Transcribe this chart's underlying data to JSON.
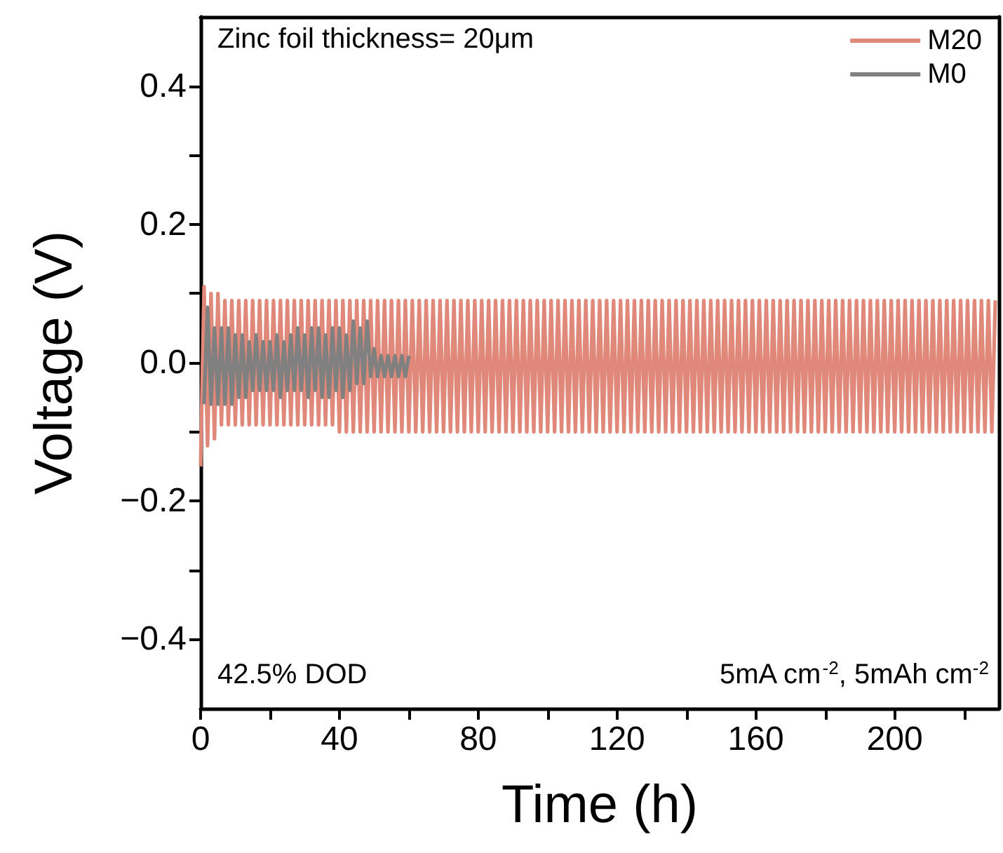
{
  "chart_data": {
    "type": "line",
    "xlabel": "Time (h)",
    "ylabel": "Voltage (V)",
    "annotations": [
      "Zinc foil thickness= 20μm",
      "42.5% DOD",
      "5mA cm$^{-2}$, 5mAh cm$^{-2}$"
    ],
    "xlim": [
      0,
      230
    ],
    "ylim": [
      -0.5,
      0.5
    ],
    "xticks": [
      0,
      {
        "value": 20,
        "label": null
      },
      40,
      {
        "value": 60,
        "label": null
      },
      80,
      {
        "value": 100,
        "label": null
      },
      120,
      {
        "value": 140,
        "label": null
      },
      160,
      {
        "value": 180,
        "label": null
      },
      200,
      {
        "value": 220,
        "label": null
      }
    ],
    "yticks": [
      {
        "value": -0.4,
        "label": "−0.4"
      },
      {
        "value": -0.3,
        "label": null
      },
      {
        "value": -0.2,
        "label": "−0.2"
      },
      {
        "value": -0.1,
        "label": null
      },
      {
        "value": 0,
        "label": "0.0"
      },
      {
        "value": 0.1,
        "label": null
      },
      {
        "value": 0.2,
        "label": "0.2"
      },
      {
        "value": 0.3,
        "label": null
      },
      {
        "value": 0.4,
        "label": "0.4"
      }
    ],
    "grid": false,
    "legend": "top right",
    "marker": "none",
    "line_style": "solid",
    "series": [
      {
        "name": "M20",
        "color": "#e0897a",
        "x": [
          0,
          1,
          2,
          3,
          4,
          5,
          6,
          7,
          8,
          9,
          10,
          11,
          12,
          13,
          14,
          15,
          16,
          17,
          18,
          19,
          20,
          21,
          22,
          23,
          24,
          25,
          26,
          27,
          28,
          29,
          30,
          31,
          32,
          33,
          34,
          35,
          36,
          37,
          38,
          39,
          40,
          41,
          42,
          43,
          44,
          45,
          46,
          47,
          48,
          49,
          50,
          51,
          52,
          53,
          54,
          55,
          56,
          57,
          58,
          59,
          60,
          61,
          62,
          63,
          64,
          65,
          66,
          67,
          68,
          69,
          70,
          71,
          72,
          73,
          74,
          75,
          76,
          77,
          78,
          79,
          80,
          81,
          82,
          83,
          84,
          85,
          86,
          87,
          88,
          89,
          90,
          91,
          92,
          93,
          94,
          95,
          96,
          97,
          98,
          99,
          100,
          101,
          102,
          103,
          104,
          105,
          106,
          107,
          108,
          109,
          110,
          111,
          112,
          113,
          114,
          115,
          116,
          117,
          118,
          119,
          120,
          121,
          122,
          123,
          124,
          125,
          126,
          127,
          128,
          129,
          130,
          131,
          132,
          133,
          134,
          135,
          136,
          137,
          138,
          139,
          140,
          141,
          142,
          143,
          144,
          145,
          146,
          147,
          148,
          149,
          150,
          151,
          152,
          153,
          154,
          155,
          156,
          157,
          158,
          159,
          160,
          161,
          162,
          163,
          164,
          165,
          166,
          167,
          168,
          169,
          170,
          171,
          172,
          173,
          174,
          175,
          176,
          177,
          178,
          179,
          180,
          181,
          182,
          183,
          184,
          185,
          186,
          187,
          188,
          189,
          190,
          191,
          192,
          193,
          194,
          195,
          196,
          197,
          198,
          199,
          200,
          201,
          202,
          203,
          204,
          205,
          206,
          207,
          208,
          209,
          210,
          211,
          212,
          213,
          214,
          215,
          216,
          217,
          218,
          219,
          220,
          221,
          222,
          223,
          224,
          225,
          226,
          227,
          228,
          229
        ],
        "values": [
          -0.15,
          0.11,
          -0.12,
          0.1,
          -0.11,
          0.1,
          -0.09,
          0.09,
          -0.09,
          0.09,
          -0.09,
          0.09,
          -0.09,
          0.09,
          -0.09,
          0.09,
          -0.09,
          0.09,
          -0.09,
          0.09,
          -0.09,
          0.09,
          -0.09,
          0.09,
          -0.09,
          0.09,
          -0.09,
          0.09,
          -0.09,
          0.09,
          -0.09,
          0.09,
          -0.09,
          0.09,
          -0.09,
          0.09,
          -0.09,
          0.09,
          -0.09,
          0.09,
          -0.1,
          0.09,
          -0.1,
          0.09,
          -0.1,
          0.09,
          -0.1,
          0.09,
          -0.1,
          0.09,
          -0.1,
          0.09,
          -0.1,
          0.09,
          -0.1,
          0.09,
          -0.1,
          0.09,
          -0.1,
          0.09,
          -0.1,
          0.09,
          -0.1,
          0.09,
          -0.1,
          0.09,
          -0.1,
          0.09,
          -0.1,
          0.09,
          -0.1,
          0.09,
          -0.1,
          0.09,
          -0.1,
          0.09,
          -0.1,
          0.09,
          -0.1,
          0.09,
          -0.1,
          0.09,
          -0.1,
          0.09,
          -0.1,
          0.09,
          -0.1,
          0.09,
          -0.1,
          0.09,
          -0.1,
          0.09,
          -0.1,
          0.09,
          -0.1,
          0.09,
          -0.1,
          0.09,
          -0.1,
          0.09,
          -0.1,
          0.09,
          -0.1,
          0.09,
          -0.1,
          0.09,
          -0.1,
          0.09,
          -0.1,
          0.09,
          -0.1,
          0.09,
          -0.1,
          0.09,
          -0.1,
          0.09,
          -0.1,
          0.09,
          -0.1,
          0.09,
          -0.1,
          0.09,
          -0.1,
          0.09,
          -0.1,
          0.09,
          -0.1,
          0.09,
          -0.1,
          0.09,
          -0.1,
          0.09,
          -0.1,
          0.09,
          -0.1,
          0.09,
          -0.1,
          0.09,
          -0.1,
          0.09,
          -0.1,
          0.09,
          -0.1,
          0.09,
          -0.1,
          0.09,
          -0.1,
          0.09,
          -0.1,
          0.09,
          -0.1,
          0.09,
          -0.1,
          0.09,
          -0.1,
          0.09,
          -0.1,
          0.09,
          -0.1,
          0.09,
          -0.1,
          0.09,
          -0.1,
          0.09,
          -0.1,
          0.09,
          -0.1,
          0.09,
          -0.1,
          0.09,
          -0.1,
          0.09,
          -0.1,
          0.09,
          -0.1,
          0.09,
          -0.1,
          0.09,
          -0.1,
          0.09,
          -0.1,
          0.09,
          -0.1,
          0.09,
          -0.1,
          0.09,
          -0.1,
          0.09,
          -0.1,
          0.09,
          -0.1,
          0.09,
          -0.1,
          0.09,
          -0.1,
          0.09,
          -0.1,
          0.09,
          -0.1,
          0.09,
          -0.1,
          0.09,
          -0.1,
          0.09,
          -0.1,
          0.09,
          -0.1,
          0.09,
          -0.1,
          0.09,
          -0.1,
          0.09,
          -0.1,
          0.09,
          -0.1,
          0.09,
          -0.1,
          0.09,
          -0.1,
          0.09,
          -0.1,
          0.09,
          -0.1,
          0.09,
          -0.1,
          0.09,
          -0.1,
          0.09,
          -0.1,
          0.09
        ]
      },
      {
        "name": "M0",
        "color": "#808080",
        "x": [
          1,
          2,
          3,
          4,
          5,
          6,
          7,
          8,
          9,
          10,
          11,
          12,
          13,
          14,
          15,
          16,
          17,
          18,
          19,
          20,
          21,
          22,
          23,
          24,
          25,
          26,
          27,
          28,
          29,
          30,
          31,
          32,
          33,
          34,
          35,
          36,
          37,
          38,
          39,
          40,
          41,
          42,
          43,
          44,
          45,
          46,
          47,
          48,
          49,
          50,
          51,
          52,
          53,
          54,
          55,
          56,
          57,
          58,
          59,
          60
        ],
        "values": [
          -0.06,
          0.08,
          -0.06,
          0.05,
          -0.06,
          0.05,
          -0.06,
          0.05,
          -0.06,
          0.04,
          -0.05,
          0.04,
          -0.05,
          0.03,
          -0.04,
          0.04,
          -0.04,
          0.03,
          -0.04,
          0.03,
          -0.04,
          0.04,
          -0.05,
          0.03,
          -0.04,
          0.04,
          -0.04,
          0.05,
          -0.04,
          0.04,
          -0.05,
          0.05,
          -0.04,
          0.05,
          -0.05,
          0.04,
          -0.05,
          0.05,
          -0.04,
          0.05,
          -0.05,
          0.04,
          -0.04,
          0.06,
          -0.03,
          0.05,
          -0.03,
          0.06,
          -0.02,
          0.02,
          -0.02,
          0.01,
          -0.02,
          0.01,
          -0.02,
          0.01,
          -0.02,
          0.01,
          -0.02,
          0.01
        ]
      }
    ]
  }
}
